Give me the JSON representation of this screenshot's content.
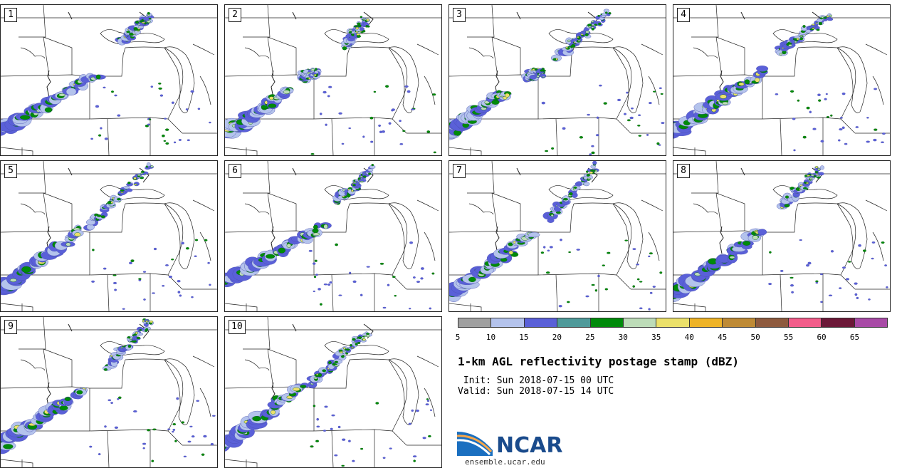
{
  "panels": [
    {
      "number": "1"
    },
    {
      "number": "2"
    },
    {
      "number": "3"
    },
    {
      "number": "4"
    },
    {
      "number": "5"
    },
    {
      "number": "6"
    },
    {
      "number": "7"
    },
    {
      "number": "8"
    },
    {
      "number": "9"
    },
    {
      "number": "10"
    }
  ],
  "colorbar": {
    "colors": [
      "#a0a0a0",
      "#b4c3ec",
      "#5a60d8",
      "#4f9a9a",
      "#008a0a",
      "#bddcb8",
      "#ebe06a",
      "#eeb327",
      "#be8a35",
      "#8e5a3e",
      "#f25c8a",
      "#6c1838",
      "#a84aa6"
    ],
    "ticks": [
      "5",
      "10",
      "15",
      "20",
      "25",
      "30",
      "35",
      "40",
      "45",
      "50",
      "55",
      "60",
      "65"
    ]
  },
  "title": "1-km AGL reflectivity postage stamp (dBZ)",
  "init": " Init: Sun 2018-07-15 00 UTC",
  "valid": "Valid: Sun 2018-07-15 14 UTC",
  "logo": {
    "word": "NCAR",
    "url": "ensemble.ucar.edu",
    "brand_color": "#1a4b8c"
  }
}
